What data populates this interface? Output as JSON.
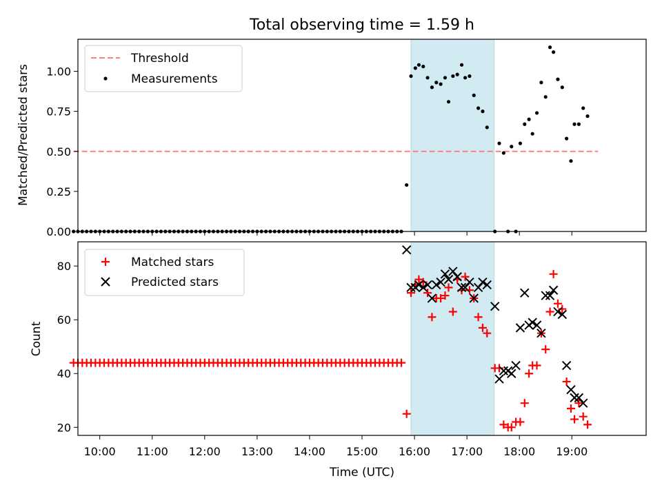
{
  "figure": {
    "title": "Total observing time = 1.59 h",
    "xlabel": "Time (UTC)",
    "x_ticks": [
      "10:00",
      "11:00",
      "12:00",
      "13:00",
      "14:00",
      "15:00",
      "16:00",
      "17:00",
      "18:00",
      "19:00"
    ],
    "highlight_color": "#add8e6"
  },
  "chart_data": [
    {
      "type": "scatter",
      "ylabel": "Matched/Predicted stars",
      "xlim": [
        "09:35",
        "20:25"
      ],
      "ylim": [
        0,
        1.2
      ],
      "y_ticks": [
        "0.00",
        "0.25",
        "0.50",
        "0.75",
        "1.00"
      ],
      "highlight_span": [
        "15:56",
        "17:31"
      ],
      "legend": {
        "placement": "top-left",
        "entries": [
          "Threshold",
          "Measurements"
        ]
      },
      "series": [
        {
          "name": "Threshold",
          "kind": "line",
          "style": "dashed",
          "color": "#ff7f7f",
          "points": [
            [
              "09:30",
              0.5
            ],
            [
              "19:30",
              0.5
            ]
          ]
        },
        {
          "name": "Measurements",
          "kind": "points",
          "color": "#000000",
          "zero_run": {
            "start": "09:30",
            "end": "15:49",
            "step_min": 5,
            "value": 0
          },
          "points": [
            [
              "15:51",
              0.29
            ],
            [
              "15:56",
              0.97
            ],
            [
              "16:01",
              1.02
            ],
            [
              "16:05",
              1.04
            ],
            [
              "16:10",
              1.03
            ],
            [
              "16:15",
              0.96
            ],
            [
              "16:20",
              0.9
            ],
            [
              "16:25",
              0.93
            ],
            [
              "16:30",
              0.92
            ],
            [
              "16:35",
              0.96
            ],
            [
              "16:39",
              0.81
            ],
            [
              "16:44",
              0.97
            ],
            [
              "16:49",
              0.98
            ],
            [
              "16:54",
              1.04
            ],
            [
              "16:58",
              0.96
            ],
            [
              "17:03",
              0.97
            ],
            [
              "17:08",
              0.85
            ],
            [
              "17:13",
              0.77
            ],
            [
              "17:18",
              0.75
            ],
            [
              "17:23",
              0.65
            ],
            [
              "17:32",
              0.0
            ],
            [
              "17:37",
              0.55
            ],
            [
              "17:42",
              0.49
            ],
            [
              "17:47",
              0.0
            ],
            [
              "17:51",
              0.53
            ],
            [
              "17:56",
              0.0
            ],
            [
              "18:01",
              0.55
            ],
            [
              "18:06",
              0.67
            ],
            [
              "18:11",
              0.7
            ],
            [
              "18:15",
              0.61
            ],
            [
              "18:20",
              0.74
            ],
            [
              "18:25",
              0.93
            ],
            [
              "18:30",
              0.84
            ],
            [
              "18:35",
              1.15
            ],
            [
              "18:39",
              1.12
            ],
            [
              "18:44",
              0.95
            ],
            [
              "18:49",
              0.9
            ],
            [
              "18:54",
              0.58
            ],
            [
              "18:59",
              0.44
            ],
            [
              "19:03",
              0.67
            ],
            [
              "19:08",
              0.67
            ],
            [
              "19:13",
              0.77
            ],
            [
              "19:18",
              0.72
            ]
          ]
        }
      ]
    },
    {
      "type": "scatter",
      "ylabel": "Count",
      "xlabel": "Time (UTC)",
      "xlim": [
        "09:35",
        "20:25"
      ],
      "ylim": [
        17,
        89
      ],
      "y_ticks": [
        "20",
        "40",
        "60",
        "80"
      ],
      "highlight_span": [
        "15:56",
        "17:31"
      ],
      "legend": {
        "placement": "top-left",
        "entries": [
          "Matched stars",
          "Predicted stars"
        ]
      },
      "series": [
        {
          "name": "Matched stars",
          "kind": "plus",
          "color": "#ff0000",
          "flat_run": {
            "start": "09:30",
            "end": "15:49",
            "step_min": 5,
            "value": 44
          },
          "points": [
            [
              "15:51",
              25
            ],
            [
              "15:56",
              70
            ],
            [
              "16:01",
              73
            ],
            [
              "16:05",
              75
            ],
            [
              "16:10",
              74
            ],
            [
              "16:15",
              70
            ],
            [
              "16:20",
              61
            ],
            [
              "16:25",
              68
            ],
            [
              "16:30",
              68
            ],
            [
              "16:35",
              69
            ],
            [
              "16:39",
              72
            ],
            [
              "16:44",
              63
            ],
            [
              "16:49",
              75
            ],
            [
              "16:54",
              71
            ],
            [
              "16:58",
              76
            ],
            [
              "17:03",
              71
            ],
            [
              "17:08",
              68
            ],
            [
              "17:13",
              61
            ],
            [
              "17:18",
              57
            ],
            [
              "17:23",
              55
            ],
            [
              "17:32",
              42
            ],
            [
              "17:37",
              42
            ],
            [
              "17:42",
              21
            ],
            [
              "17:47",
              20
            ],
            [
              "17:51",
              20
            ],
            [
              "17:56",
              22
            ],
            [
              "18:01",
              22
            ],
            [
              "18:06",
              29
            ],
            [
              "18:11",
              40
            ],
            [
              "18:15",
              43
            ],
            [
              "18:20",
              43
            ],
            [
              "18:25",
              55
            ],
            [
              "18:30",
              49
            ],
            [
              "18:35",
              63
            ],
            [
              "18:39",
              77
            ],
            [
              "18:44",
              66
            ],
            [
              "18:49",
              64
            ],
            [
              "18:54",
              37
            ],
            [
              "18:59",
              27
            ],
            [
              "19:03",
              23
            ],
            [
              "19:08",
              29
            ],
            [
              "19:13",
              24
            ],
            [
              "19:18",
              21
            ]
          ]
        },
        {
          "name": "Predicted stars",
          "kind": "cross",
          "color": "#000000",
          "points": [
            [
              "15:51",
              86
            ],
            [
              "15:56",
              72
            ],
            [
              "16:01",
              72
            ],
            [
              "16:05",
              73
            ],
            [
              "16:10",
              72
            ],
            [
              "16:15",
              73
            ],
            [
              "16:20",
              68
            ],
            [
              "16:25",
              73
            ],
            [
              "16:30",
              74
            ],
            [
              "16:35",
              77
            ],
            [
              "16:39",
              75
            ],
            [
              "16:44",
              78
            ],
            [
              "16:49",
              76
            ],
            [
              "16:54",
              72
            ],
            [
              "16:58",
              72
            ],
            [
              "17:03",
              74
            ],
            [
              "17:08",
              68
            ],
            [
              "17:13",
              72
            ],
            [
              "17:18",
              74
            ],
            [
              "17:23",
              73
            ],
            [
              "17:32",
              65
            ],
            [
              "17:37",
              38
            ],
            [
              "17:42",
              41
            ],
            [
              "17:47",
              41
            ],
            [
              "17:51",
              40
            ],
            [
              "17:56",
              43
            ],
            [
              "18:01",
              57
            ],
            [
              "18:06",
              70
            ],
            [
              "18:11",
              58
            ],
            [
              "18:15",
              59
            ],
            [
              "18:20",
              58
            ],
            [
              "18:25",
              55
            ],
            [
              "18:30",
              69
            ],
            [
              "18:35",
              69
            ],
            [
              "18:39",
              71
            ],
            [
              "18:44",
              63
            ],
            [
              "18:49",
              62
            ],
            [
              "18:54",
              43
            ],
            [
              "18:59",
              34
            ],
            [
              "19:03",
              31
            ],
            [
              "19:08",
              31
            ],
            [
              "19:13",
              29
            ]
          ]
        }
      ]
    }
  ]
}
